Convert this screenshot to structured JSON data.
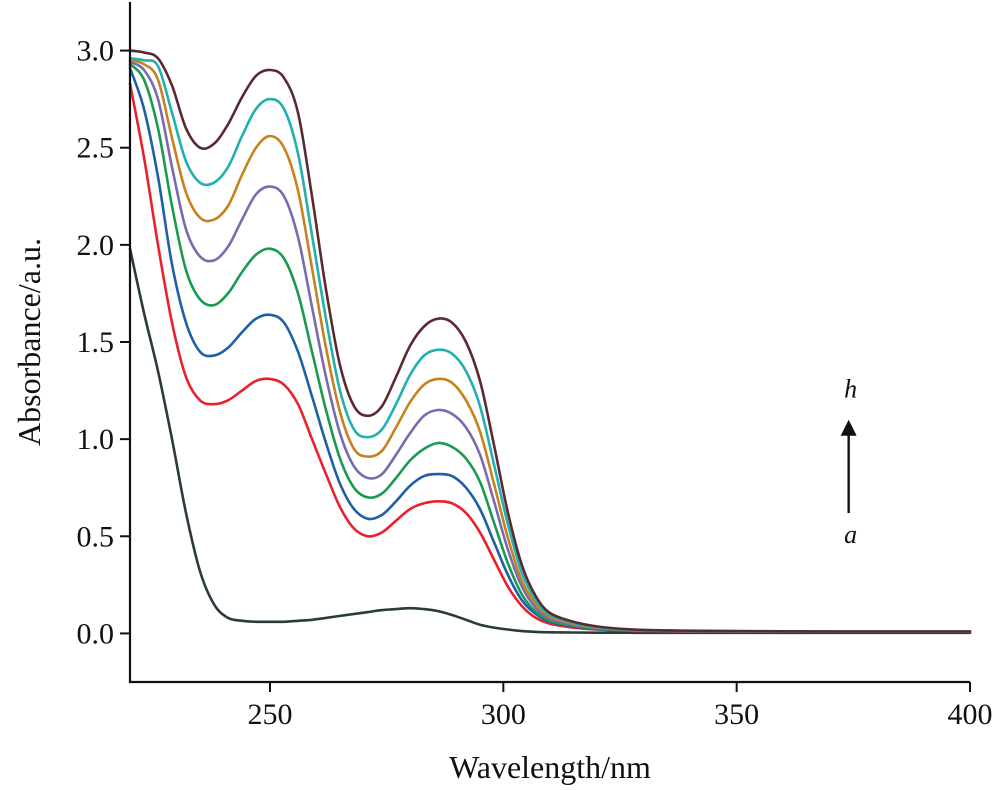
{
  "chart_data": {
    "type": "line",
    "title": "",
    "xlabel": "Wavelength/nm",
    "ylabel": "Absorbance/a.u.",
    "xlim": [
      220,
      400
    ],
    "ylim": [
      -0.25,
      3.25
    ],
    "xticks": [
      250,
      300,
      350,
      400
    ],
    "xtick_labels": [
      "250",
      "300",
      "350",
      "400"
    ],
    "yticks": [
      0.0,
      0.5,
      1.0,
      1.5,
      2.0,
      2.5,
      3.0
    ],
    "ytick_labels": [
      "0.0",
      "0.5",
      "1.0",
      "1.5",
      "2.0",
      "2.5",
      "3.0"
    ],
    "grid": false,
    "legend": "none",
    "annotation": {
      "top_label": "h",
      "bottom_label": "a",
      "arrow": "up",
      "x": 374,
      "y_start": 0.62,
      "y_end": 1.1
    },
    "x": [
      220,
      223,
      226,
      229,
      232,
      235,
      238,
      241,
      244,
      247,
      250,
      253,
      256,
      259,
      262,
      265,
      268,
      271,
      274,
      277,
      280,
      283,
      286,
      289,
      292,
      295,
      298,
      301,
      304,
      307,
      310,
      315,
      320,
      325,
      330,
      340,
      350,
      360,
      370,
      380,
      390,
      400
    ],
    "series": [
      {
        "color": "#2b3a3a",
        "values": [
          1.98,
          1.65,
          1.35,
          1.0,
          0.62,
          0.32,
          0.15,
          0.08,
          0.065,
          0.06,
          0.06,
          0.06,
          0.065,
          0.07,
          0.08,
          0.09,
          0.1,
          0.11,
          0.12,
          0.125,
          0.13,
          0.125,
          0.115,
          0.095,
          0.07,
          0.045,
          0.03,
          0.02,
          0.012,
          0.008,
          0.006,
          0.005,
          0.004,
          0.004,
          0.003,
          0.003,
          0.003,
          0.003,
          0.003,
          0.003,
          0.003,
          0.003
        ]
      },
      {
        "color": "#e8212e",
        "values": [
          2.83,
          2.45,
          2.0,
          1.6,
          1.32,
          1.2,
          1.18,
          1.2,
          1.25,
          1.3,
          1.31,
          1.28,
          1.18,
          1.0,
          0.82,
          0.65,
          0.54,
          0.5,
          0.52,
          0.58,
          0.64,
          0.67,
          0.68,
          0.67,
          0.62,
          0.52,
          0.38,
          0.24,
          0.14,
          0.08,
          0.05,
          0.03,
          0.02,
          0.015,
          0.012,
          0.01,
          0.01,
          0.01,
          0.01,
          0.01,
          0.01,
          0.01
        ]
      },
      {
        "color": "#1f5fa8",
        "values": [
          2.91,
          2.7,
          2.35,
          1.9,
          1.6,
          1.45,
          1.43,
          1.47,
          1.55,
          1.62,
          1.64,
          1.6,
          1.45,
          1.22,
          0.98,
          0.77,
          0.64,
          0.59,
          0.61,
          0.68,
          0.76,
          0.81,
          0.82,
          0.81,
          0.75,
          0.64,
          0.47,
          0.3,
          0.17,
          0.1,
          0.06,
          0.035,
          0.022,
          0.016,
          0.013,
          0.011,
          0.01,
          0.01,
          0.01,
          0.01,
          0.01,
          0.01
        ]
      },
      {
        "color": "#1a9a50",
        "values": [
          2.93,
          2.85,
          2.6,
          2.2,
          1.87,
          1.72,
          1.69,
          1.75,
          1.86,
          1.95,
          1.98,
          1.93,
          1.75,
          1.45,
          1.15,
          0.9,
          0.75,
          0.7,
          0.72,
          0.8,
          0.89,
          0.95,
          0.98,
          0.96,
          0.9,
          0.78,
          0.57,
          0.36,
          0.2,
          0.11,
          0.065,
          0.04,
          0.025,
          0.018,
          0.014,
          0.012,
          0.011,
          0.01,
          0.01,
          0.01,
          0.01,
          0.01
        ]
      },
      {
        "color": "#7a6ab0",
        "values": [
          2.94,
          2.9,
          2.75,
          2.4,
          2.08,
          1.94,
          1.92,
          1.99,
          2.13,
          2.26,
          2.3,
          2.25,
          2.04,
          1.68,
          1.32,
          1.03,
          0.86,
          0.8,
          0.82,
          0.92,
          1.03,
          1.12,
          1.15,
          1.13,
          1.06,
          0.92,
          0.68,
          0.43,
          0.24,
          0.13,
          0.075,
          0.045,
          0.028,
          0.02,
          0.015,
          0.012,
          0.011,
          0.01,
          0.01,
          0.01,
          0.01,
          0.01
        ]
      },
      {
        "color": "#c7821f",
        "values": [
          2.95,
          2.93,
          2.85,
          2.55,
          2.27,
          2.14,
          2.13,
          2.2,
          2.36,
          2.5,
          2.56,
          2.5,
          2.28,
          1.88,
          1.47,
          1.14,
          0.95,
          0.91,
          0.94,
          1.06,
          1.19,
          1.28,
          1.31,
          1.29,
          1.2,
          1.04,
          0.77,
          0.49,
          0.27,
          0.15,
          0.085,
          0.05,
          0.03,
          0.02,
          0.016,
          0.013,
          0.011,
          0.01,
          0.01,
          0.01,
          0.01,
          0.01
        ]
      },
      {
        "color": "#20b0b0",
        "values": [
          2.96,
          2.95,
          2.92,
          2.68,
          2.43,
          2.32,
          2.32,
          2.4,
          2.56,
          2.7,
          2.75,
          2.7,
          2.47,
          2.05,
          1.62,
          1.25,
          1.05,
          1.01,
          1.05,
          1.18,
          1.33,
          1.43,
          1.46,
          1.44,
          1.35,
          1.17,
          0.87,
          0.56,
          0.31,
          0.17,
          0.095,
          0.055,
          0.033,
          0.022,
          0.017,
          0.013,
          0.011,
          0.01,
          0.01,
          0.01,
          0.01,
          0.01
        ]
      },
      {
        "color": "#5a2a30",
        "values": [
          3.0,
          2.99,
          2.96,
          2.82,
          2.6,
          2.5,
          2.52,
          2.62,
          2.76,
          2.87,
          2.9,
          2.86,
          2.68,
          2.25,
          1.77,
          1.38,
          1.17,
          1.12,
          1.17,
          1.32,
          1.48,
          1.58,
          1.62,
          1.6,
          1.5,
          1.3,
          0.97,
          0.62,
          0.35,
          0.19,
          0.105,
          0.06,
          0.036,
          0.024,
          0.018,
          0.014,
          0.012,
          0.011,
          0.01,
          0.01,
          0.01,
          0.01
        ]
      }
    ]
  }
}
